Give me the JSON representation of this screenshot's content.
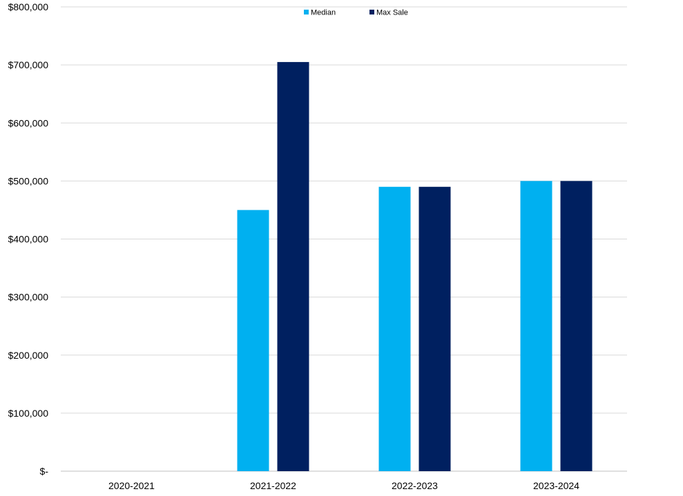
{
  "chart_data": {
    "type": "bar",
    "categories": [
      "2020-2021",
      "2021-2022",
      "2022-2023",
      "2023-2024"
    ],
    "series": [
      {
        "name": "Median",
        "color": "#00b0f0",
        "values": [
          0,
          450000,
          490000,
          500000
        ]
      },
      {
        "name": "Max Sale",
        "color": "#002060",
        "values": [
          0,
          705000,
          490000,
          500000
        ]
      }
    ],
    "ylim": [
      0,
      800000
    ],
    "yticks": [
      0,
      100000,
      200000,
      300000,
      400000,
      500000,
      600000,
      700000,
      800000
    ],
    "ytick_labels": [
      "$-",
      "$100,000",
      "$200,000",
      "$300,000",
      "$400,000",
      "$500,000",
      "$600,000",
      "$700,000",
      "$800,000"
    ],
    "grid": true,
    "legend_position": "top-center",
    "title": "",
    "xlabel": "",
    "ylabel": ""
  }
}
